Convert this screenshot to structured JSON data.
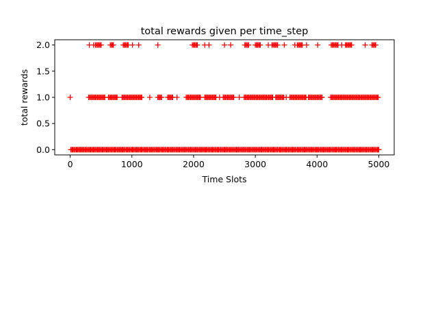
{
  "chart_data": {
    "type": "scatter",
    "title": "total rewards given per time_step",
    "xlabel": "Time Slots",
    "ylabel": "total rewards",
    "xlim": [
      -250,
      5250
    ],
    "ylim": [
      -0.1,
      2.1
    ],
    "xticks": [
      0,
      1000,
      2000,
      3000,
      4000,
      5000
    ],
    "yticks": [
      0.0,
      0.5,
      1.0,
      1.5,
      2.0
    ],
    "yticklabels": [
      "0.0",
      "0.5",
      "1.0",
      "1.5",
      "2.0"
    ],
    "grid": false,
    "marker": "+",
    "color": "#ff0000",
    "series": [
      {
        "values_by_level": [
          {
            "y": 0.0,
            "x_ranges": [
              [
                10,
                5000
              ]
            ],
            "x_points": [
              40,
              110,
              160,
              210,
              260,
              320,
              380,
              450,
              520,
              600,
              660,
              720,
              800,
              850,
              930,
              1010,
              1080,
              1150,
              1230,
              1310,
              1420,
              1500,
              1580,
              1650,
              1760,
              1860,
              1950,
              2040,
              2120,
              2200,
              2300,
              2400,
              2500,
              2600,
              2700,
              2800,
              2900,
              3000,
              3100,
              3200,
              3300,
              3400,
              3500,
              3600,
              3700,
              3800,
              3900,
              4000,
              4100,
              4200,
              4300,
              4400,
              4500,
              4600,
              4700,
              4800,
              4900,
              4980
            ]
          },
          {
            "y": 1.0,
            "x_ranges": [
              [
                300,
                560
              ],
              [
                620,
                760
              ],
              [
                840,
                1160
              ],
              [
                1420,
                1480
              ],
              [
                1580,
                1660
              ],
              [
                1880,
                2110
              ],
              [
                2180,
                2360
              ],
              [
                2480,
                2650
              ],
              [
                2820,
                3280
              ],
              [
                3330,
                3460
              ],
              [
                3560,
                3820
              ],
              [
                3860,
                4080
              ],
              [
                4220,
                4990
              ]
            ],
            "x_points": [
              0,
              1290,
              1730,
              2420,
              2740,
              3500
            ]
          },
          {
            "y": 2.0,
            "x_ranges": [
              [
                410,
                500
              ],
              [
                650,
                700
              ],
              [
                860,
                940
              ],
              [
                1980,
                2060
              ],
              [
                2830,
                2890
              ],
              [
                3000,
                3080
              ],
              [
                3270,
                3360
              ],
              [
                3680,
                3760
              ],
              [
                4230,
                4340
              ],
              [
                4460,
                4560
              ],
              [
                4890,
                4950
              ]
            ],
            "x_points": [
              310,
              380,
              1010,
              1110,
              1420,
              2180,
              2250,
              2500,
              2600,
              3210,
              3470,
              3640,
              3830,
              4010,
              4400,
              4780
            ]
          }
        ]
      }
    ]
  }
}
